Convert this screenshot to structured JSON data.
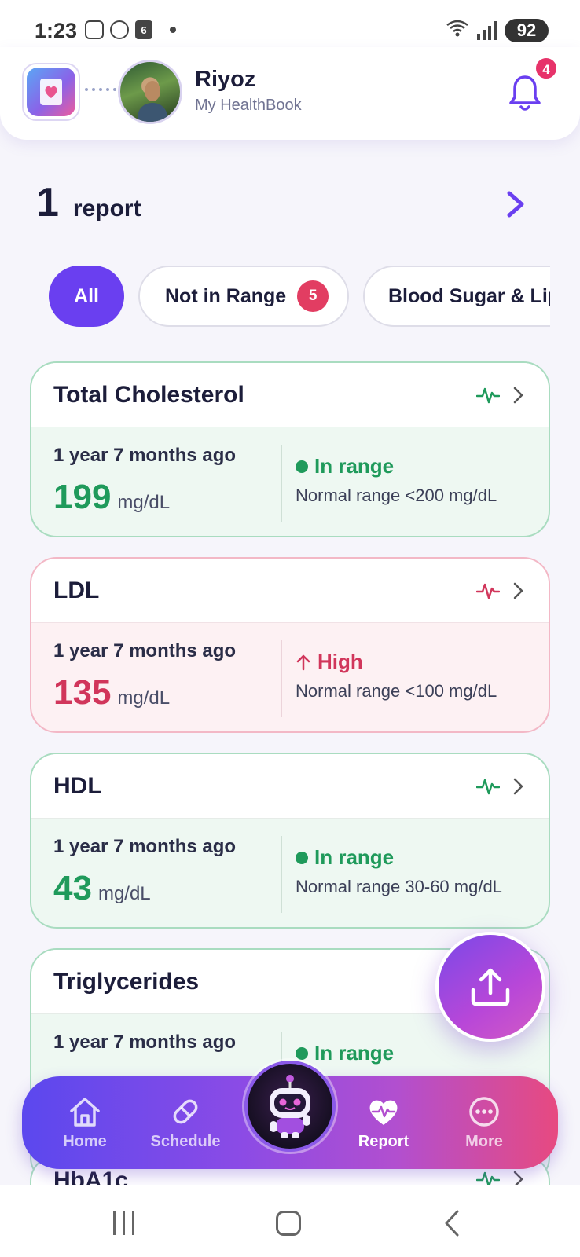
{
  "status_bar": {
    "time": "1:23",
    "calendar_day": "6",
    "battery": "92",
    "network": "5"
  },
  "header": {
    "user_name": "Riyoz",
    "subtitle": "My HealthBook",
    "notification_count": "4"
  },
  "summary": {
    "count": "1",
    "label": "report"
  },
  "filters": [
    {
      "label": "All",
      "active": true
    },
    {
      "label": "Not in Range",
      "badge": "5",
      "active": false
    },
    {
      "label": "Blood Sugar & Lipids",
      "active": false
    }
  ],
  "cards": [
    {
      "title": "Total Cholesterol",
      "date": "1 year 7 months ago",
      "value": "199",
      "unit": "mg/dL",
      "status": "In range",
      "range": "Normal range <200 mg/dL",
      "state": "normal"
    },
    {
      "title": "LDL",
      "date": "1 year 7 months ago",
      "value": "135",
      "unit": "mg/dL",
      "status": "High",
      "range": "Normal range <100 mg/dL",
      "state": "high"
    },
    {
      "title": "HDL",
      "date": "1 year 7 months ago",
      "value": "43",
      "unit": "mg/dL",
      "status": "In range",
      "range": "Normal range 30-60 mg/dL",
      "state": "normal"
    },
    {
      "title": "Triglycerides",
      "date": "1 year 7 months ago",
      "value": "",
      "unit": "",
      "status": "In range",
      "range": "",
      "state": "normal"
    },
    {
      "title": "HbA1c"
    }
  ],
  "bottom_nav": [
    {
      "label": "Home",
      "icon": "home-icon"
    },
    {
      "label": "Schedule",
      "icon": "pill-icon"
    },
    {
      "label": "Report",
      "icon": "heart-pulse-icon",
      "active": true
    },
    {
      "label": "More",
      "icon": "more-icon"
    }
  ],
  "colors": {
    "accent": "#6a3ff0",
    "in_range": "#1f9a5b",
    "high": "#d1365b",
    "badge": "#e23d62"
  }
}
